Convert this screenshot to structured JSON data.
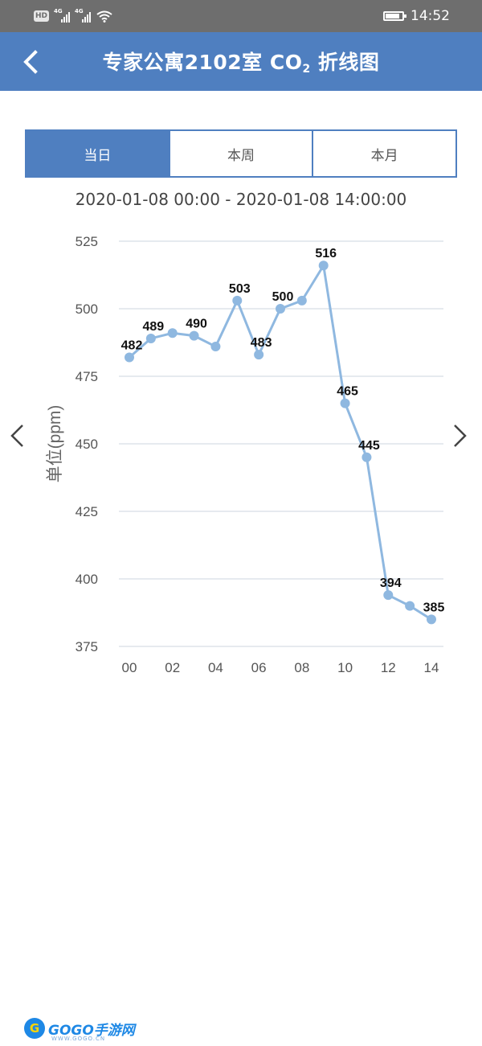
{
  "status_bar": {
    "hd_badge": "HD",
    "sim1_label": "4G",
    "sim2_label": "4G",
    "signal_icons": [
      "signal-icon",
      "signal-icon",
      "wifi-icon"
    ],
    "battery_level": 0.85,
    "time": "14:52"
  },
  "header": {
    "title_main": "专家公寓2102室 CO",
    "title_sub": "2",
    "title_tail": " 折线图",
    "back_icon": "chevron-left-icon",
    "background": "#4f7fc0"
  },
  "tabs": [
    {
      "label": "当日",
      "active": true
    },
    {
      "label": "本周",
      "active": false
    },
    {
      "label": "本月",
      "active": false
    }
  ],
  "date_range": "2020-01-08 00:00 - 2020-01-08 14:00:00",
  "nav": {
    "prev_icon": "chevron-left-icon",
    "next_icon": "chevron-right-icon"
  },
  "chart_data": {
    "type": "line",
    "title": "",
    "ylabel": "单位(ppm)",
    "xlabel": "",
    "x": [
      0,
      1,
      2,
      3,
      4,
      5,
      6,
      7,
      8,
      9,
      10,
      11,
      12,
      13,
      14
    ],
    "xticks": [
      "00",
      "02",
      "04",
      "06",
      "08",
      "10",
      "12",
      "14"
    ],
    "yticks": [
      375,
      400,
      425,
      450,
      475,
      500,
      525
    ],
    "ylim": [
      375,
      525
    ],
    "series": [
      {
        "values": [
          482,
          489,
          491,
          490,
          486,
          503,
          483,
          500,
          503,
          516,
          465,
          445,
          394,
          390,
          385
        ]
      }
    ],
    "labels": [
      {
        "x": 0,
        "text": "482"
      },
      {
        "x": 1,
        "text": "489"
      },
      {
        "x": 3,
        "text": "490"
      },
      {
        "x": 5,
        "text": "503"
      },
      {
        "x": 6,
        "text": "483"
      },
      {
        "x": 7,
        "text": "500"
      },
      {
        "x": 9,
        "text": "516"
      },
      {
        "x": 10,
        "text": "465"
      },
      {
        "x": 11,
        "text": "445"
      },
      {
        "x": 12,
        "text": "394"
      },
      {
        "x": 14,
        "text": "385"
      }
    ],
    "line_color": "#8fb8e0",
    "grid": true
  },
  "watermark": {
    "logo_letter": "G",
    "text": "GOGO手游网",
    "subtext": "WWW.GOGO.CN"
  }
}
